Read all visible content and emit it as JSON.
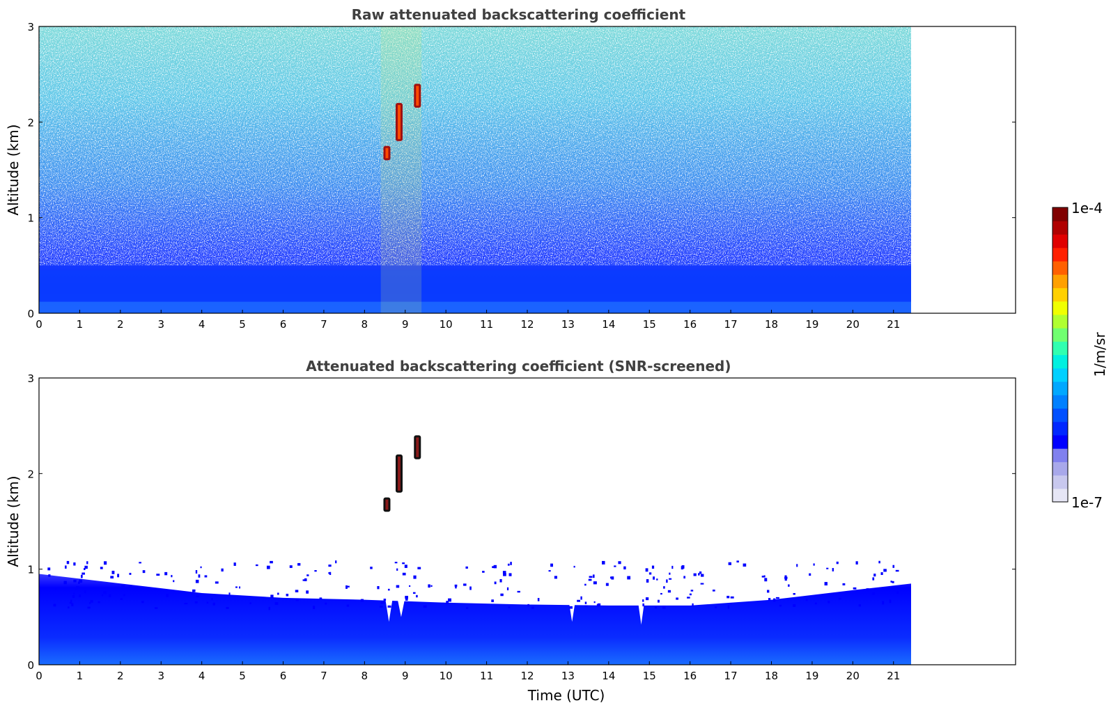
{
  "chart_data": [
    {
      "type": "heatmap",
      "title": "Raw attenuated backscattering coefficient",
      "xlabel": "",
      "ylabel": "Altitude (km)",
      "xlim": [
        0,
        24
      ],
      "ylim": [
        0,
        3
      ],
      "data_extent_x": [
        0,
        21.45
      ],
      "x_ticks": [
        0,
        1,
        2,
        3,
        4,
        5,
        6,
        7,
        8,
        9,
        10,
        11,
        12,
        13,
        14,
        15,
        16,
        17,
        18,
        19,
        20,
        21
      ],
      "y_ticks": [
        0,
        1,
        2,
        3
      ],
      "features": [
        {
          "kind": "dense_blue_layer",
          "altitude_top_km": 0.45
        },
        {
          "kind": "cloud",
          "time_utc": 8.55,
          "altitude_km": [
            1.6,
            1.75
          ]
        },
        {
          "kind": "cloud",
          "time_utc": 8.85,
          "altitude_km": [
            1.8,
            2.2
          ]
        },
        {
          "kind": "cloud",
          "time_utc": 9.3,
          "altitude_km": [
            2.15,
            2.4
          ]
        }
      ]
    },
    {
      "type": "heatmap",
      "title": "Attenuated backscattering coefficient (SNR-screened)",
      "xlabel": "Time (UTC)",
      "ylabel": "Altitude (km)",
      "xlim": [
        0,
        24
      ],
      "ylim": [
        0,
        3
      ],
      "data_extent_x": [
        0,
        21.45
      ],
      "x_ticks": [
        0,
        1,
        2,
        3,
        4,
        5,
        6,
        7,
        8,
        9,
        10,
        11,
        12,
        13,
        14,
        15,
        16,
        17,
        18,
        19,
        20,
        21
      ],
      "y_ticks": [
        0,
        1,
        2,
        3
      ],
      "boundary_layer_top_km": [
        {
          "t": 0,
          "h": 0.95
        },
        {
          "t": 2,
          "h": 0.85
        },
        {
          "t": 4,
          "h": 0.75
        },
        {
          "t": 6,
          "h": 0.7
        },
        {
          "t": 8,
          "h": 0.68
        },
        {
          "t": 10,
          "h": 0.65
        },
        {
          "t": 12,
          "h": 0.63
        },
        {
          "t": 14,
          "h": 0.62
        },
        {
          "t": 16,
          "h": 0.62
        },
        {
          "t": 18,
          "h": 0.68
        },
        {
          "t": 20,
          "h": 0.78
        },
        {
          "t": 21.45,
          "h": 0.85
        }
      ],
      "features": [
        {
          "kind": "cloud",
          "time_utc": 8.55,
          "altitude_km": [
            1.6,
            1.75
          ]
        },
        {
          "kind": "cloud",
          "time_utc": 8.85,
          "altitude_km": [
            1.8,
            2.2
          ]
        },
        {
          "kind": "cloud",
          "time_utc": 9.3,
          "altitude_km": [
            2.15,
            2.4
          ]
        }
      ]
    }
  ],
  "colorbar": {
    "max_label": "1e-4",
    "min_label": "1e-7",
    "unit_label": "1/m/sr",
    "colors": [
      "#e6e6f5",
      "#c8c8ee",
      "#a8a8ea",
      "#8080ee",
      "#0000ff",
      "#0028ff",
      "#0050ff",
      "#0080ff",
      "#00a8ff",
      "#00d0ff",
      "#00f0e0",
      "#30ffb0",
      "#70ff70",
      "#b0ff30",
      "#f0ff00",
      "#ffd000",
      "#ffa000",
      "#ff6000",
      "#ff2000",
      "#e00000",
      "#b00000",
      "#800000"
    ]
  }
}
